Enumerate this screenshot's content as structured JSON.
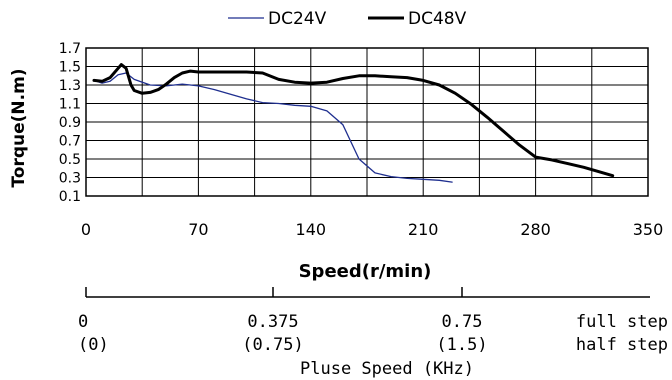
{
  "chart_data": {
    "type": "line",
    "title": "",
    "xlabel": "Speed(r/min)",
    "ylabel": "Torque(N.m)",
    "xlim": [
      0,
      350
    ],
    "ylim": [
      0.1,
      1.7
    ],
    "x_ticks": [
      "0",
      "70",
      "140",
      "210",
      "280",
      "350"
    ],
    "y_ticks": [
      "1.7",
      "1.5",
      "1.3",
      "1.1",
      "0.9",
      "0.7",
      "0.5",
      "0.3",
      "0.1"
    ],
    "grid": true,
    "legend_position": "top",
    "series": [
      {
        "name": "DC24V",
        "color": "#1f2f8f",
        "x": [
          5,
          10,
          15,
          20,
          25,
          30,
          40,
          50,
          60,
          70,
          80,
          90,
          100,
          110,
          120,
          130,
          140,
          150,
          160,
          170,
          180,
          190,
          200,
          210,
          220,
          228
        ],
        "y": [
          1.35,
          1.32,
          1.34,
          1.41,
          1.43,
          1.36,
          1.3,
          1.29,
          1.31,
          1.29,
          1.25,
          1.2,
          1.15,
          1.11,
          1.1,
          1.08,
          1.07,
          1.02,
          0.87,
          0.5,
          0.35,
          0.31,
          0.29,
          0.28,
          0.27,
          0.25
        ]
      },
      {
        "name": "DC48V",
        "color": "#000000",
        "x": [
          5,
          10,
          15,
          20,
          22,
          25,
          28,
          30,
          35,
          40,
          45,
          50,
          55,
          60,
          65,
          70,
          80,
          90,
          100,
          110,
          120,
          130,
          140,
          150,
          160,
          170,
          180,
          190,
          200,
          210,
          220,
          230,
          240,
          250,
          260,
          270,
          280,
          290,
          300,
          310,
          320,
          328
        ],
        "y": [
          1.35,
          1.34,
          1.38,
          1.48,
          1.52,
          1.48,
          1.3,
          1.24,
          1.21,
          1.22,
          1.25,
          1.31,
          1.38,
          1.43,
          1.45,
          1.44,
          1.44,
          1.44,
          1.44,
          1.43,
          1.36,
          1.33,
          1.32,
          1.33,
          1.37,
          1.4,
          1.4,
          1.39,
          1.38,
          1.35,
          1.3,
          1.21,
          1.09,
          0.95,
          0.8,
          0.65,
          0.52,
          0.49,
          0.45,
          0.41,
          0.36,
          0.32
        ]
      }
    ]
  },
  "pulse_axis": {
    "title": "Pluse Speed (KHz)",
    "row_labels": [
      "full step",
      "half step"
    ],
    "ticks": [
      {
        "full": "0",
        "half": "(0)"
      },
      {
        "full": "0.375",
        "half": "(0.75)"
      },
      {
        "full": "0.75",
        "half": "(1.5)"
      }
    ]
  }
}
